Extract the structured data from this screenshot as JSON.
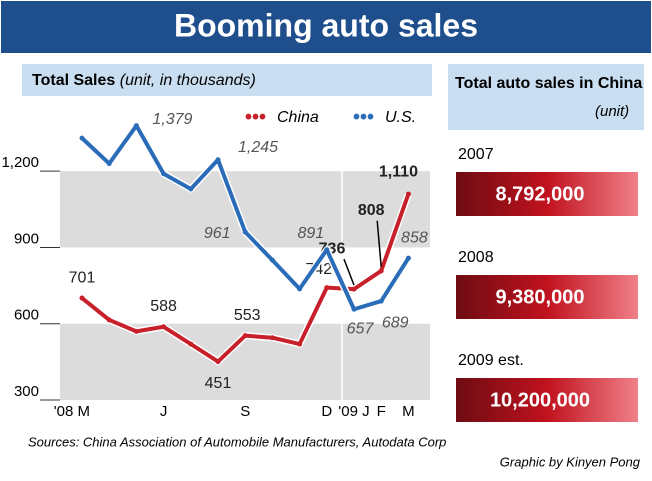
{
  "chart_data": {
    "type": "line",
    "title": "Booming auto sales",
    "subtitle": "Total Sales",
    "unit_note": "(unit, in thousands)",
    "categories": [
      "'08 M",
      null,
      null,
      "J",
      null,
      null,
      "S",
      null,
      null,
      "D",
      "'09 J",
      "F",
      "M"
    ],
    "series": [
      {
        "name": "China",
        "color": "#c8202a",
        "values": [
          701,
          615,
          570,
          588,
          520,
          451,
          553,
          545,
          520,
          742,
          736,
          808,
          1110
        ],
        "value_labels": [
          "701",
          null,
          null,
          "588",
          null,
          "451",
          "553",
          null,
          null,
          "742",
          "736",
          "808",
          "1,110"
        ]
      },
      {
        "name": "U.S.",
        "color": "#2a6cb8",
        "values": [
          1330,
          1230,
          1379,
          1190,
          1130,
          1245,
          961,
          850,
          737,
          891,
          657,
          689,
          858
        ],
        "value_labels": [
          null,
          null,
          "1,379",
          null,
          null,
          "1,245",
          "961",
          null,
          null,
          "891",
          "657",
          "689",
          "858"
        ]
      }
    ],
    "ylim": [
      300,
      1480
    ],
    "yticks": [
      300,
      600,
      900,
      {
        "value": 1200,
        "label": "1,200"
      }
    ],
    "sources": "Sources: China Association of Automobile Manufacturers, Autodata Corp",
    "credit": "Graphic by Kinyen Pong",
    "side_panel": {
      "title": "Total auto sales in China",
      "unit": "(unit)",
      "rows": [
        {
          "year": "2007",
          "value": "8,792,000"
        },
        {
          "year": "2008",
          "value": "9,380,000"
        },
        {
          "year": "2009 est.",
          "value": "10,200,000"
        }
      ]
    }
  }
}
